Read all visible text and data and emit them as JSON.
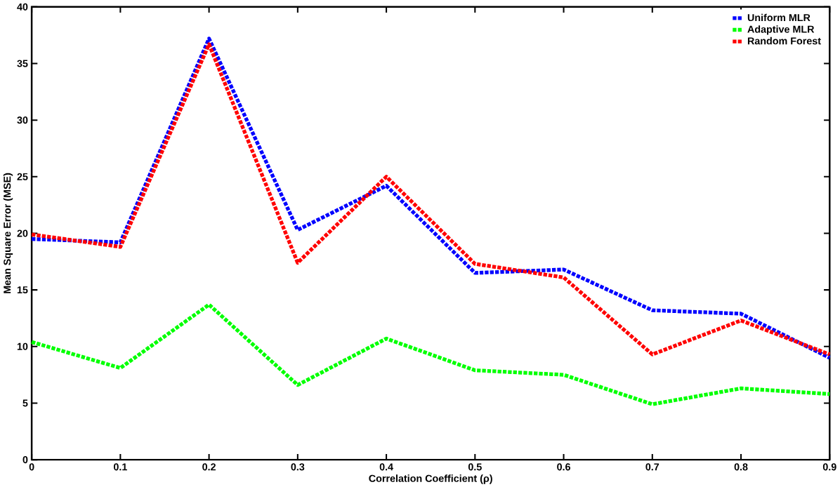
{
  "chart_data": {
    "type": "line",
    "xlabel": "Correlation Coefficient (ρ)",
    "ylabel": "Mean Square Error (MSE)",
    "x": [
      0,
      0.1,
      0.2,
      0.3,
      0.4,
      0.5,
      0.6,
      0.7,
      0.8,
      0.9
    ],
    "series": [
      {
        "name": "Uniform MLR",
        "color": "#0000ff",
        "values": [
          19.5,
          19.2,
          37.2,
          20.3,
          24.2,
          16.5,
          16.8,
          13.2,
          12.9,
          9.0
        ]
      },
      {
        "name": "Adaptive MLR",
        "color": "#00ff00",
        "values": [
          10.4,
          8.1,
          13.7,
          6.6,
          10.7,
          7.9,
          7.5,
          4.9,
          6.3,
          5.8
        ]
      },
      {
        "name": "Random Forest",
        "color": "#ff0000",
        "values": [
          19.9,
          18.8,
          36.7,
          17.4,
          25.0,
          17.3,
          16.1,
          9.3,
          12.3,
          9.3
        ]
      }
    ],
    "xlim": [
      0,
      0.9
    ],
    "ylim": [
      0,
      40
    ],
    "xticks": [
      0,
      0.1,
      0.2,
      0.3,
      0.4,
      0.5,
      0.6,
      0.7,
      0.8,
      0.9
    ],
    "yticks": [
      0,
      5,
      10,
      15,
      20,
      25,
      30,
      35,
      40
    ],
    "legend": "top right",
    "line_style": "dotted",
    "marker": "none",
    "grid": false
  }
}
